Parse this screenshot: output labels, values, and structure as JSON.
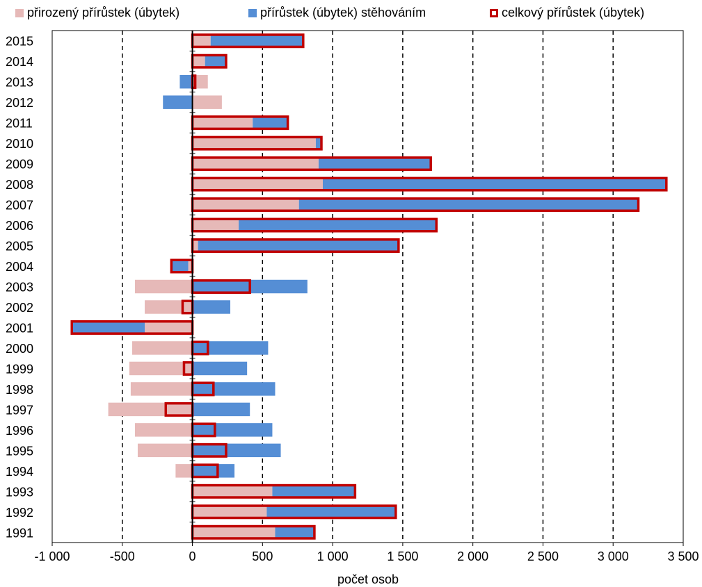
{
  "chart_data": {
    "type": "bar",
    "orientation": "horizontal",
    "xlabel": "počet osob",
    "xlim": [
      -1000,
      3500
    ],
    "xticks": [
      -1000,
      -500,
      0,
      500,
      1000,
      1500,
      2000,
      2500,
      3000,
      3500
    ],
    "xtick_labels": [
      "-1 000",
      "-500",
      "0",
      "500",
      "1 000",
      "1 500",
      "2 000",
      "2 500",
      "3 000",
      "3 500"
    ],
    "grid": "vertical dashed",
    "legend_position": "top",
    "categories": [
      "1991",
      "1992",
      "1993",
      "1994",
      "1995",
      "1996",
      "1997",
      "1998",
      "1999",
      "2000",
      "2001",
      "2002",
      "2003",
      "2004",
      "2005",
      "2006",
      "2007",
      "2008",
      "2009",
      "2010",
      "2011",
      "2012",
      "2013",
      "2014",
      "2015"
    ],
    "series": [
      {
        "name": "přirozený přírůstek (úbytek)",
        "kind": "bar",
        "color": "#e6b9b8",
        "values": [
          590,
          530,
          570,
          -120,
          -390,
          -410,
          -600,
          -440,
          -450,
          -430,
          -340,
          -340,
          -410,
          -30,
          40,
          330,
          760,
          930,
          900,
          880,
          430,
          210,
          110,
          90,
          130
        ]
      },
      {
        "name": "přírůstek (úbytek) stěhováním",
        "kind": "bar",
        "color": "#558ed5",
        "values": [
          280,
          920,
          590,
          300,
          630,
          570,
          410,
          590,
          390,
          540,
          -520,
          270,
          820,
          -120,
          1430,
          1410,
          2420,
          2450,
          800,
          40,
          250,
          -210,
          -90,
          150,
          660
        ]
      },
      {
        "name": "celkový přírůstek (úbytek)",
        "kind": "outline",
        "color": "#c00000",
        "values": [
          870,
          1450,
          1160,
          180,
          240,
          160,
          -190,
          150,
          -60,
          110,
          -860,
          -70,
          410,
          -150,
          1470,
          1740,
          3180,
          3380,
          1700,
          920,
          680,
          0,
          20,
          240,
          790
        ]
      }
    ]
  }
}
